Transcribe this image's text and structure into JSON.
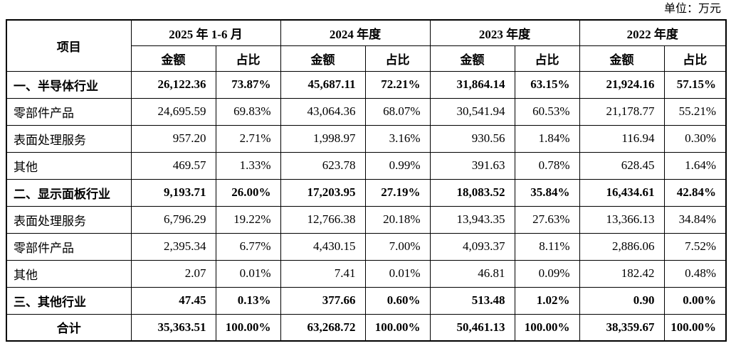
{
  "unit_label": "单位：万元",
  "table": {
    "item_header": "项目",
    "periods": [
      "2025 年 1-6 月",
      "2024 年度",
      "2023 年度",
      "2022 年度"
    ],
    "sub_headers": [
      "金额",
      "占比"
    ],
    "rows": [
      {
        "label": "一、半导体行业",
        "bold": true,
        "center": false,
        "values": [
          "26,122.36",
          "73.87%",
          "45,687.11",
          "72.21%",
          "31,864.14",
          "63.15%",
          "21,924.16",
          "57.15%"
        ]
      },
      {
        "label": "零部件产品",
        "bold": false,
        "center": false,
        "values": [
          "24,695.59",
          "69.83%",
          "43,064.36",
          "68.07%",
          "30,541.94",
          "60.53%",
          "21,178.77",
          "55.21%"
        ]
      },
      {
        "label": "表面处理服务",
        "bold": false,
        "center": false,
        "values": [
          "957.20",
          "2.71%",
          "1,998.97",
          "3.16%",
          "930.56",
          "1.84%",
          "116.94",
          "0.30%"
        ]
      },
      {
        "label": "其他",
        "bold": false,
        "center": false,
        "values": [
          "469.57",
          "1.33%",
          "623.78",
          "0.99%",
          "391.63",
          "0.78%",
          "628.45",
          "1.64%"
        ]
      },
      {
        "label": "二、显示面板行业",
        "bold": true,
        "center": false,
        "values": [
          "9,193.71",
          "26.00%",
          "17,203.95",
          "27.19%",
          "18,083.52",
          "35.84%",
          "16,434.61",
          "42.84%"
        ]
      },
      {
        "label": "表面处理服务",
        "bold": false,
        "center": false,
        "values": [
          "6,796.29",
          "19.22%",
          "12,766.38",
          "20.18%",
          "13,943.35",
          "27.63%",
          "13,366.13",
          "34.84%"
        ]
      },
      {
        "label": "零部件产品",
        "bold": false,
        "center": false,
        "values": [
          "2,395.34",
          "6.77%",
          "4,430.15",
          "7.00%",
          "4,093.37",
          "8.11%",
          "2,886.06",
          "7.52%"
        ]
      },
      {
        "label": "其他",
        "bold": false,
        "center": false,
        "values": [
          "2.07",
          "0.01%",
          "7.41",
          "0.01%",
          "46.81",
          "0.09%",
          "182.42",
          "0.48%"
        ]
      },
      {
        "label": "三、其他行业",
        "bold": true,
        "center": false,
        "values": [
          "47.45",
          "0.13%",
          "377.66",
          "0.60%",
          "513.48",
          "1.02%",
          "0.90",
          "0.00%"
        ]
      },
      {
        "label": "合计",
        "bold": true,
        "center": true,
        "values": [
          "35,363.51",
          "100.00%",
          "63,268.72",
          "100.00%",
          "50,461.13",
          "100.00%",
          "38,359.67",
          "100.00%"
        ]
      }
    ]
  }
}
